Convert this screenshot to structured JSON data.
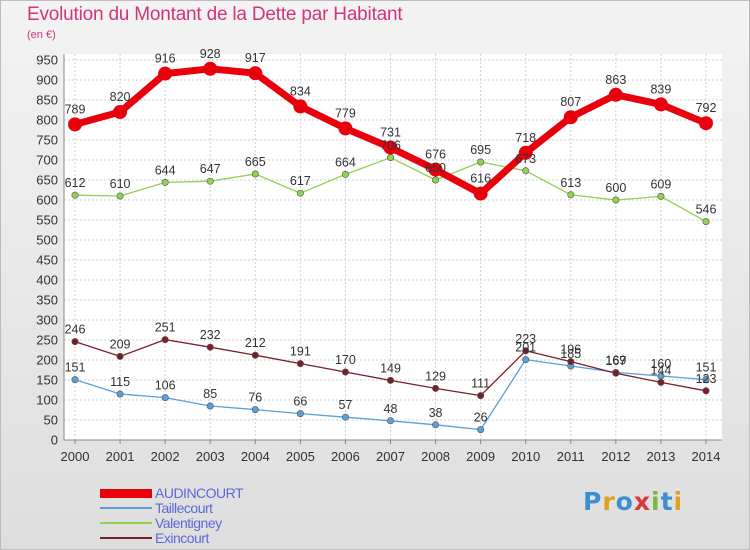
{
  "title": "Evolution du Montant de la Dette par Habitant",
  "subtitle": "(en €)",
  "logo": {
    "text": "Proxiti",
    "colors": [
      "#3a8fd0",
      "#e0a020",
      "#3a8fd0",
      "#d63a3a",
      "#7ab648",
      "#3a8fd0",
      "#e0a020"
    ]
  },
  "chart_data": {
    "type": "line",
    "x": [
      "2000",
      "2001",
      "2002",
      "2003",
      "2004",
      "2005",
      "2006",
      "2007",
      "2008",
      "2009",
      "2010",
      "2011",
      "2012",
      "2013",
      "2014"
    ],
    "ylim": [
      0,
      950
    ],
    "yticks": [
      0,
      50,
      100,
      150,
      200,
      250,
      300,
      350,
      400,
      450,
      500,
      550,
      600,
      650,
      700,
      750,
      800,
      850,
      900,
      950
    ],
    "grid": true,
    "legend_position": "bottom-left",
    "series": [
      {
        "name": "AUDINCOURT",
        "color": "#e8000d",
        "values": [
          789,
          820,
          916,
          928,
          917,
          834,
          779,
          731,
          676,
          616,
          718,
          807,
          863,
          839,
          792
        ]
      },
      {
        "name": "Taillecourt",
        "color": "#5b9fd8",
        "values": [
          151,
          115,
          106,
          85,
          76,
          66,
          57,
          48,
          38,
          26,
          201,
          185,
          169,
          160,
          151
        ]
      },
      {
        "name": "Valentigney",
        "color": "#92d050",
        "values": [
          612,
          610,
          644,
          647,
          665,
          617,
          664,
          706,
          650,
          695,
          673,
          613,
          600,
          609,
          546
        ]
      },
      {
        "name": "Exincourt",
        "color": "#7a1f2a",
        "values": [
          246,
          209,
          251,
          232,
          212,
          191,
          170,
          149,
          129,
          111,
          223,
          196,
          167,
          144,
          123
        ]
      }
    ]
  }
}
